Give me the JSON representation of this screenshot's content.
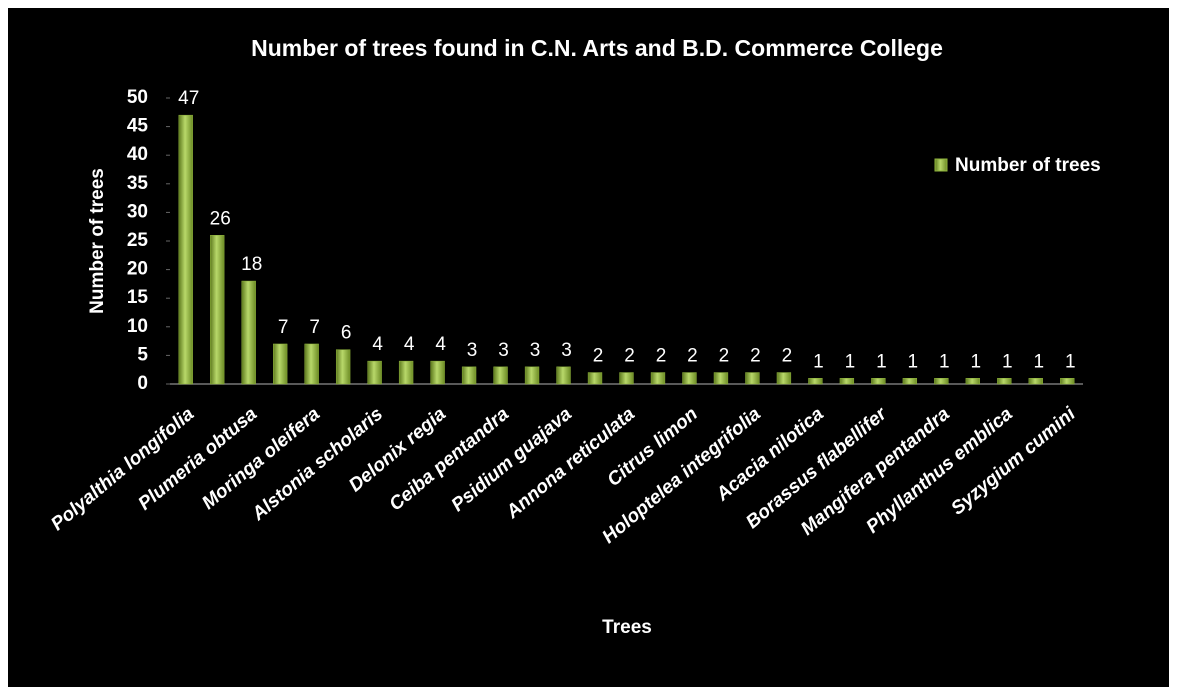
{
  "chart_data": {
    "type": "bar",
    "title": "Number of trees found in C.N. Arts and B.D. Commerce College",
    "x_label": "Trees",
    "y_label": "Number of trees",
    "categories": [
      "Polyalthia longifolia",
      null,
      "Plumeria obtusa",
      null,
      "Moringa oleifera",
      null,
      "Alstonia scholaris",
      null,
      "Delonix regia",
      null,
      "Ceiba pentandra",
      null,
      "Psidium guajava",
      null,
      "Annona reticulata",
      null,
      "Citrus limon",
      null,
      "Holoptelea integrifolia",
      null,
      "Acacia nilotica",
      null,
      "Borassus flabellifer",
      null,
      "Mangifera pentandra",
      null,
      "Phyllanthus emblica",
      null,
      "Syzygium cumini"
    ],
    "series": [
      {
        "name": "Number of trees",
        "color": "#8fb43c",
        "values": [
          47,
          26,
          18,
          7,
          7,
          6,
          4,
          4,
          4,
          3,
          3,
          3,
          3,
          2,
          2,
          2,
          2,
          2,
          2,
          2,
          1,
          1,
          1,
          1,
          1,
          1,
          1,
          1,
          1
        ]
      }
    ],
    "ylim": [
      0,
      50
    ],
    "yticks": [
      0,
      5,
      10,
      15,
      20,
      25,
      30,
      35,
      40,
      45,
      50
    ],
    "legend": "right",
    "grid": false
  }
}
